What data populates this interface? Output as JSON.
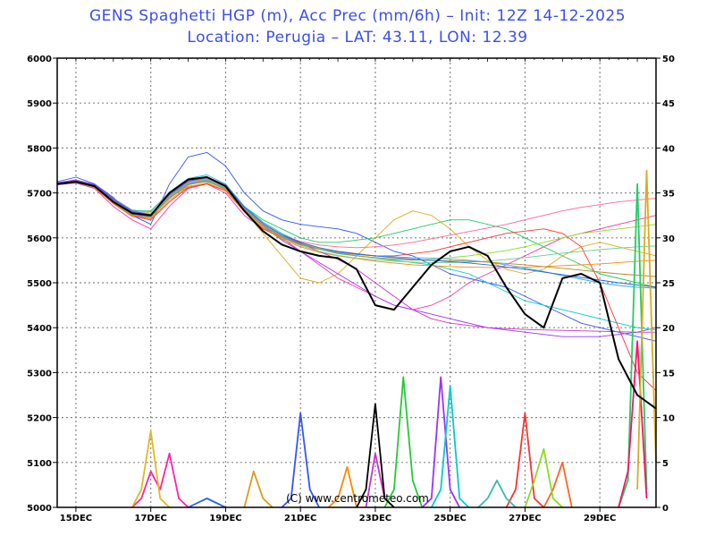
{
  "header": {
    "title_line1": "GENS Spaghetti HGP (m), Acc Prec (mm/6h)  –  Init: 12Z 14-12-2025",
    "title_line2": "Location: Perugia  –  LAT: 43.11, LON: 12.39"
  },
  "footer": {
    "copyright": "(C) www.centrometeo.com"
  },
  "chart_data": {
    "type": "line",
    "grid": true,
    "x_ticks": [
      "15DEC",
      "17DEC",
      "19DEC",
      "21DEC",
      "23DEC",
      "25DEC",
      "27DEC",
      "29DEC"
    ],
    "x_range_days": [
      14.5,
      30.5
    ],
    "y_left": {
      "label": "",
      "ticks": [
        "5000",
        "5100",
        "5200",
        "5300",
        "5400",
        "5500",
        "5600",
        "5700",
        "5800",
        "5900",
        "6000"
      ],
      "range": [
        5000,
        6000
      ]
    },
    "y_right": {
      "label": "",
      "ticks": [
        "0",
        "5",
        "10",
        "15",
        "20",
        "25",
        "30",
        "35",
        "40",
        "45",
        "50"
      ],
      "range": [
        0,
        50
      ]
    },
    "control_run": {
      "name": "",
      "color": "#000000",
      "x": [
        14.5,
        15.0,
        15.5,
        16.0,
        16.5,
        17.0,
        17.5,
        18.0,
        18.5,
        19.0,
        19.5,
        20.0,
        20.5,
        21.0,
        21.5,
        22.0,
        22.5,
        23.0,
        23.5,
        24.0,
        24.5,
        25.0,
        25.5,
        26.0,
        26.5,
        27.0,
        27.5,
        28.0,
        28.5,
        29.0,
        29.5,
        30.0,
        30.5
      ],
      "y": [
        5720,
        5725,
        5715,
        5680,
        5655,
        5650,
        5700,
        5730,
        5735,
        5715,
        5660,
        5615,
        5585,
        5570,
        5560,
        5555,
        5530,
        5450,
        5440,
        5490,
        5540,
        5570,
        5580,
        5560,
        5490,
        5430,
        5400,
        5510,
        5520,
        5500,
        5330,
        5250,
        5220
      ]
    },
    "control_precip": {
      "color": "#000000",
      "x": [
        22.5,
        22.75,
        23.0,
        23.25,
        23.5
      ],
      "y": [
        0,
        2,
        11.5,
        1,
        0
      ]
    },
    "hgp_members": [
      {
        "color": "#3355ff",
        "y": [
          5725,
          5735,
          5720,
          5690,
          5650,
          5630,
          5720,
          5780,
          5790,
          5760,
          5700,
          5660,
          5640,
          5630,
          5625,
          5620,
          5610,
          5590,
          5570,
          5560,
          5540,
          5520,
          5510,
          5500,
          5490,
          5470,
          5450,
          5430,
          5410,
          5400,
          5390,
          5380,
          5370
        ]
      },
      {
        "color": "#ff33aa",
        "y": [
          5720,
          5725,
          5710,
          5670,
          5640,
          5620,
          5670,
          5710,
          5720,
          5700,
          5650,
          5620,
          5600,
          5570,
          5540,
          5510,
          5490,
          5470,
          5450,
          5440,
          5450,
          5470,
          5500,
          5520,
          5540,
          5560,
          5580,
          5600,
          5610,
          5620,
          5630,
          5640,
          5650
        ]
      },
      {
        "color": "#22cc66",
        "y": [
          5720,
          5722,
          5712,
          5680,
          5660,
          5660,
          5700,
          5720,
          5725,
          5710,
          5670,
          5640,
          5620,
          5600,
          5590,
          5590,
          5595,
          5600,
          5610,
          5620,
          5630,
          5640,
          5640,
          5630,
          5620,
          5600,
          5580,
          5560,
          5540,
          5520,
          5510,
          5500,
          5490
        ]
      },
      {
        "color": "#ddaa22",
        "y": [
          5720,
          5724,
          5714,
          5685,
          5662,
          5655,
          5690,
          5715,
          5720,
          5705,
          5660,
          5610,
          5560,
          5510,
          5500,
          5520,
          5560,
          5600,
          5640,
          5660,
          5650,
          5620,
          5580,
          5550,
          5530,
          5520,
          5530,
          5560,
          5580,
          5590,
          5580,
          5570,
          5560
        ]
      },
      {
        "color": "#9933ff",
        "y": [
          5718,
          5722,
          5710,
          5678,
          5650,
          5645,
          5690,
          5720,
          5728,
          5712,
          5665,
          5625,
          5595,
          5570,
          5545,
          5520,
          5495,
          5470,
          5450,
          5440,
          5430,
          5420,
          5410,
          5400,
          5395,
          5390,
          5385,
          5380,
          5380,
          5380,
          5385,
          5390,
          5400
        ]
      },
      {
        "color": "#00cccc",
        "y": [
          5722,
          5728,
          5718,
          5688,
          5662,
          5658,
          5702,
          5732,
          5740,
          5720,
          5670,
          5635,
          5610,
          5590,
          5575,
          5565,
          5560,
          5555,
          5550,
          5545,
          5540,
          5530,
          5520,
          5500,
          5480,
          5460,
          5450,
          5440,
          5430,
          5420,
          5410,
          5400,
          5395
        ]
      },
      {
        "color": "#ff3333",
        "y": [
          5720,
          5724,
          5712,
          5676,
          5648,
          5640,
          5680,
          5712,
          5720,
          5705,
          5658,
          5620,
          5600,
          5585,
          5575,
          5570,
          5565,
          5560,
          5560,
          5565,
          5570,
          5580,
          5590,
          5600,
          5610,
          5615,
          5620,
          5610,
          5580,
          5500,
          5400,
          5300,
          5260
        ]
      },
      {
        "color": "#88dd22",
        "y": [
          5721,
          5726,
          5715,
          5682,
          5656,
          5650,
          5692,
          5722,
          5730,
          5712,
          5664,
          5628,
          5604,
          5588,
          5576,
          5568,
          5560,
          5556,
          5552,
          5550,
          5552,
          5556,
          5560,
          5566,
          5572,
          5580,
          5590,
          5600,
          5610,
          5615,
          5620,
          5625,
          5630
        ]
      },
      {
        "color": "#ff8800",
        "y": [
          5719,
          5723,
          5711,
          5677,
          5649,
          5642,
          5684,
          5714,
          5722,
          5706,
          5659,
          5622,
          5597,
          5580,
          5568,
          5560,
          5554,
          5548,
          5544,
          5540,
          5538,
          5536,
          5535,
          5534,
          5534,
          5535,
          5536,
          5538,
          5540,
          5542,
          5545,
          5548,
          5550
        ]
      },
      {
        "color": "#cc33cc",
        "y": [
          5723,
          5729,
          5719,
          5687,
          5660,
          5652,
          5696,
          5728,
          5736,
          5718,
          5668,
          5632,
          5606,
          5588,
          5570,
          5552,
          5530,
          5500,
          5470,
          5440,
          5420,
          5410,
          5405,
          5400,
          5398,
          5396,
          5395,
          5394,
          5393,
          5392,
          5391,
          5390,
          5390
        ]
      },
      {
        "color": "#33aaff",
        "y": [
          5720,
          5725,
          5714,
          5681,
          5654,
          5648,
          5690,
          5721,
          5729,
          5711,
          5663,
          5627,
          5603,
          5587,
          5575,
          5568,
          5563,
          5560,
          5558,
          5556,
          5555,
          5553,
          5550,
          5546,
          5540,
          5533,
          5525,
          5516,
          5508,
          5500,
          5494,
          5490,
          5488
        ]
      },
      {
        "color": "#ff6699",
        "y": [
          5721,
          5726,
          5716,
          5684,
          5658,
          5651,
          5694,
          5724,
          5732,
          5714,
          5666,
          5630,
          5606,
          5592,
          5584,
          5580,
          5578,
          5580,
          5584,
          5590,
          5598,
          5606,
          5614,
          5622,
          5630,
          5640,
          5650,
          5660,
          5668,
          5674,
          5680,
          5684,
          5688
        ]
      },
      {
        "color": "#66cc99",
        "y": [
          5719,
          5724,
          5713,
          5679,
          5652,
          5646,
          5688,
          5719,
          5727,
          5709,
          5661,
          5625,
          5600,
          5583,
          5570,
          5561,
          5555,
          5551,
          5548,
          5546,
          5545,
          5545,
          5546,
          5548,
          5552,
          5556,
          5561,
          5566,
          5570,
          5574,
          5577,
          5580,
          5582
        ]
      },
      {
        "color": "#bb8822",
        "y": [
          5720,
          5724,
          5713,
          5680,
          5653,
          5647,
          5688,
          5718,
          5726,
          5708,
          5662,
          5626,
          5602,
          5586,
          5575,
          5566,
          5560,
          5556,
          5553,
          5551,
          5550,
          5549,
          5548,
          5546,
          5543,
          5540,
          5536,
          5532,
          5528,
          5524,
          5520,
          5517,
          5514
        ]
      },
      {
        "color": "#2266dd",
        "y": [
          5722,
          5727,
          5717,
          5685,
          5658,
          5652,
          5696,
          5726,
          5734,
          5716,
          5668,
          5632,
          5607,
          5590,
          5578,
          5570,
          5564,
          5560,
          5556,
          5553,
          5550,
          5547,
          5544,
          5540,
          5535,
          5530,
          5524,
          5518,
          5512,
          5506,
          5500,
          5495,
          5490
        ]
      }
    ],
    "precip_members": [
      {
        "color": "#ff22aa",
        "x": [
          16.5,
          16.75,
          17.0,
          17.25,
          17.5,
          17.75,
          18.0
        ],
        "y": [
          0,
          1,
          4,
          2,
          6,
          1,
          0
        ]
      },
      {
        "color": "#ddbb22",
        "x": [
          16.5,
          16.75,
          17.0,
          17.25,
          17.5
        ],
        "y": [
          0,
          2,
          8.5,
          1,
          0
        ]
      },
      {
        "color": "#3355ff",
        "x": [
          20.5,
          20.75,
          21.0,
          21.25,
          21.5
        ],
        "y": [
          0,
          1,
          10.5,
          2,
          0
        ]
      },
      {
        "color": "#22cc33",
        "x": [
          23.25,
          23.5,
          23.75,
          24.0,
          24.25
        ],
        "y": [
          0,
          2,
          14.5,
          3,
          0
        ]
      },
      {
        "color": "#9933ff",
        "x": [
          24.25,
          24.5,
          24.75,
          25.0,
          25.25
        ],
        "y": [
          0,
          1,
          14.5,
          2,
          0
        ]
      },
      {
        "color": "#00cccc",
        "x": [
          24.5,
          24.75,
          25.0,
          25.25,
          25.5
        ],
        "y": [
          0,
          2,
          13.5,
          1,
          0
        ]
      },
      {
        "color": "#ff3333",
        "x": [
          26.5,
          26.75,
          27.0,
          27.25,
          27.5
        ],
        "y": [
          0,
          2,
          10.5,
          1,
          0
        ]
      },
      {
        "color": "#22cc66",
        "x": [
          29.5,
          29.75,
          30.0,
          30.25
        ],
        "y": [
          0,
          3,
          36,
          2
        ]
      },
      {
        "color": "#ff1166",
        "x": [
          29.5,
          29.75,
          30.0,
          30.25
        ],
        "y": [
          0,
          4,
          18.5,
          1
        ]
      },
      {
        "color": "#ddaa22",
        "x": [
          30.0,
          30.25,
          30.5
        ],
        "y": [
          2,
          37.5,
          5
        ]
      },
      {
        "color": "#ff8800",
        "x": [
          21.75,
          22.0,
          22.25,
          22.5
        ],
        "y": [
          0,
          1,
          4.5,
          0
        ]
      },
      {
        "color": "#33bbaa",
        "x": [
          25.75,
          26.0,
          26.25,
          26.5,
          26.75
        ],
        "y": [
          0,
          1,
          3,
          1,
          0
        ]
      },
      {
        "color": "#cc33cc",
        "x": [
          22.75,
          23.0,
          23.25,
          23.5
        ],
        "y": [
          0,
          6,
          1,
          0
        ]
      },
      {
        "color": "#ff6622",
        "x": [
          27.5,
          27.75,
          28.0,
          28.25
        ],
        "y": [
          0,
          2,
          5,
          0
        ]
      },
      {
        "color": "#88dd22",
        "x": [
          27.0,
          27.25,
          27.5,
          27.75,
          28.0
        ],
        "y": [
          0,
          3,
          6.5,
          1,
          0
        ]
      },
      {
        "color": "#2266dd",
        "x": [
          18.0,
          18.25,
          18.5,
          18.75,
          19.0
        ],
        "y": [
          0,
          0.5,
          1,
          0.5,
          0
        ]
      },
      {
        "color": "#dd9922",
        "x": [
          19.5,
          19.75,
          20.0,
          20.25
        ],
        "y": [
          0,
          4,
          1,
          0
        ]
      }
    ]
  }
}
